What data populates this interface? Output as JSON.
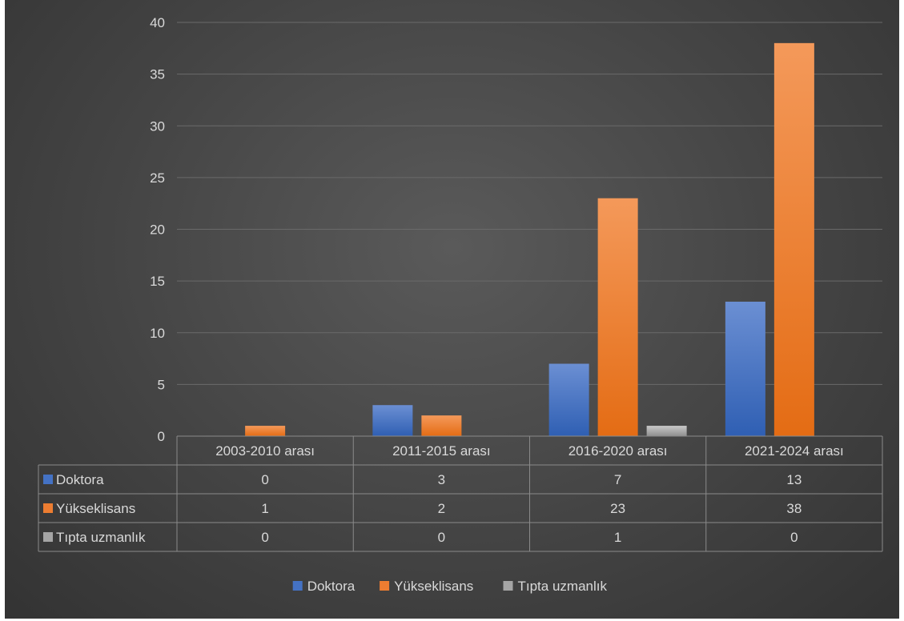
{
  "chart_data": {
    "type": "bar",
    "categories": [
      "2003-2010 arası",
      "2011-2015 arası",
      "2016-2020 arası",
      "2021-2024 arası"
    ],
    "series": [
      {
        "name": "Doktora",
        "values": [
          0,
          3,
          7,
          13
        ],
        "color": "#4472c4"
      },
      {
        "name": "Yükseklisans",
        "values": [
          1,
          2,
          23,
          38
        ],
        "color": "#ed7d31"
      },
      {
        "name": "Tıpta uzmanlık",
        "values": [
          0,
          0,
          1,
          0
        ],
        "color": "#a5a5a5"
      }
    ],
    "ylim": [
      0,
      40
    ],
    "yticks": [
      0,
      5,
      10,
      15,
      20,
      25,
      30,
      35,
      40
    ],
    "grid": true,
    "data_table": true,
    "legend_position": "bottom"
  }
}
